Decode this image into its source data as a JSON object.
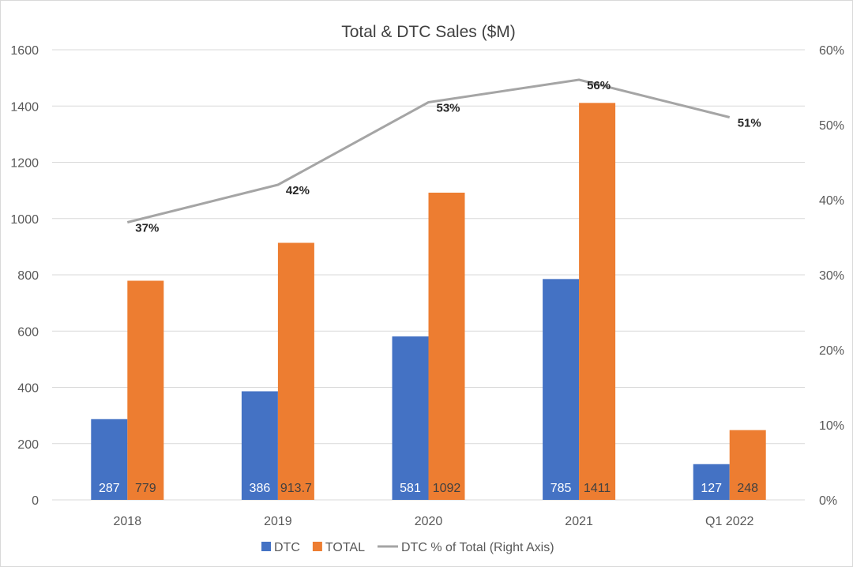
{
  "chart_data": {
    "type": "bar",
    "title": "Total & DTC Sales ($M)",
    "categories": [
      "2018",
      "2019",
      "2020",
      "2021",
      "Q1 2022"
    ],
    "series": [
      {
        "name": "DTC",
        "type": "bar",
        "axis": "left",
        "color": "#4472c4",
        "values": [
          287,
          386,
          581,
          785,
          127
        ],
        "labels": [
          "287",
          "386",
          "581",
          "785",
          "127"
        ]
      },
      {
        "name": "TOTAL",
        "type": "bar",
        "axis": "left",
        "color": "#ed7d31",
        "values": [
          779,
          913.7,
          1092,
          1411,
          248
        ],
        "labels": [
          "779",
          "913.7",
          "1092",
          "1411",
          "248"
        ]
      },
      {
        "name": "DTC % of Total (Right Axis)",
        "type": "line",
        "axis": "right",
        "color": "#a5a5a5",
        "values": [
          0.37,
          0.42,
          0.53,
          0.56,
          0.51
        ],
        "labels": [
          "37%",
          "42%",
          "53%",
          "56%",
          "51%"
        ]
      }
    ],
    "ylim": [
      0,
      1600
    ],
    "yticks": [
      "0",
      "200",
      "400",
      "600",
      "800",
      "1000",
      "1200",
      "1400",
      "1600"
    ],
    "y2lim": [
      0,
      0.6
    ],
    "y2ticks": [
      "0%",
      "10%",
      "20%",
      "30%",
      "40%",
      "50%",
      "60%"
    ],
    "grid": true,
    "legend_position": "bottom"
  }
}
